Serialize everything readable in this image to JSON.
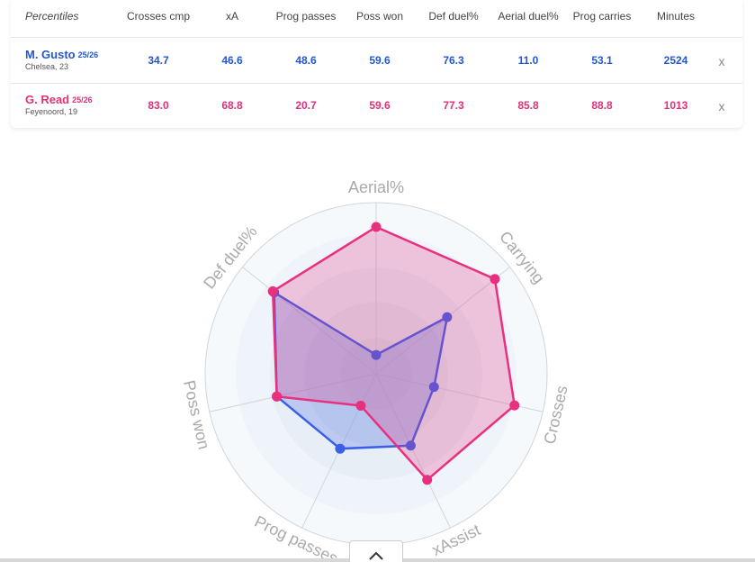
{
  "table": {
    "header": [
      "Percentiles",
      "Crosses cmp",
      "xA",
      "Prog passes",
      "Poss won",
      "Def duel%",
      "Aerial duel%",
      "Prog carries",
      "Minutes"
    ],
    "rows": [
      {
        "name": "M. Gusto",
        "season": "25/26",
        "team": "Chelsea, 23",
        "values": [
          "34.7",
          "46.6",
          "48.6",
          "59.6",
          "76.3",
          "11.0",
          "53.1",
          "2524"
        ],
        "remove": "x",
        "color": "#2457d6"
      },
      {
        "name": "G. Read",
        "season": "25/26",
        "team": "Feyenoord, 19",
        "values": [
          "83.0",
          "68.8",
          "20.7",
          "59.6",
          "77.3",
          "85.8",
          "88.8",
          "1013"
        ],
        "remove": "x",
        "color": "#e0307a"
      }
    ]
  },
  "chart_data": {
    "type": "radar",
    "categories": [
      "Aerial%",
      "Carrying",
      "Crosses",
      "xAssist",
      "Prog passes",
      "Poss won",
      "Def duel%"
    ],
    "rlim": [
      0,
      100
    ],
    "series": [
      {
        "name": "M. Gusto",
        "color": "#3b5fe8",
        "values": [
          11.0,
          53.1,
          34.7,
          46.6,
          48.6,
          59.6,
          76.3
        ]
      },
      {
        "name": "G. Read",
        "color": "#e8307f",
        "values": [
          85.8,
          88.8,
          83.0,
          68.8,
          20.7,
          59.6,
          77.3
        ]
      }
    ]
  }
}
